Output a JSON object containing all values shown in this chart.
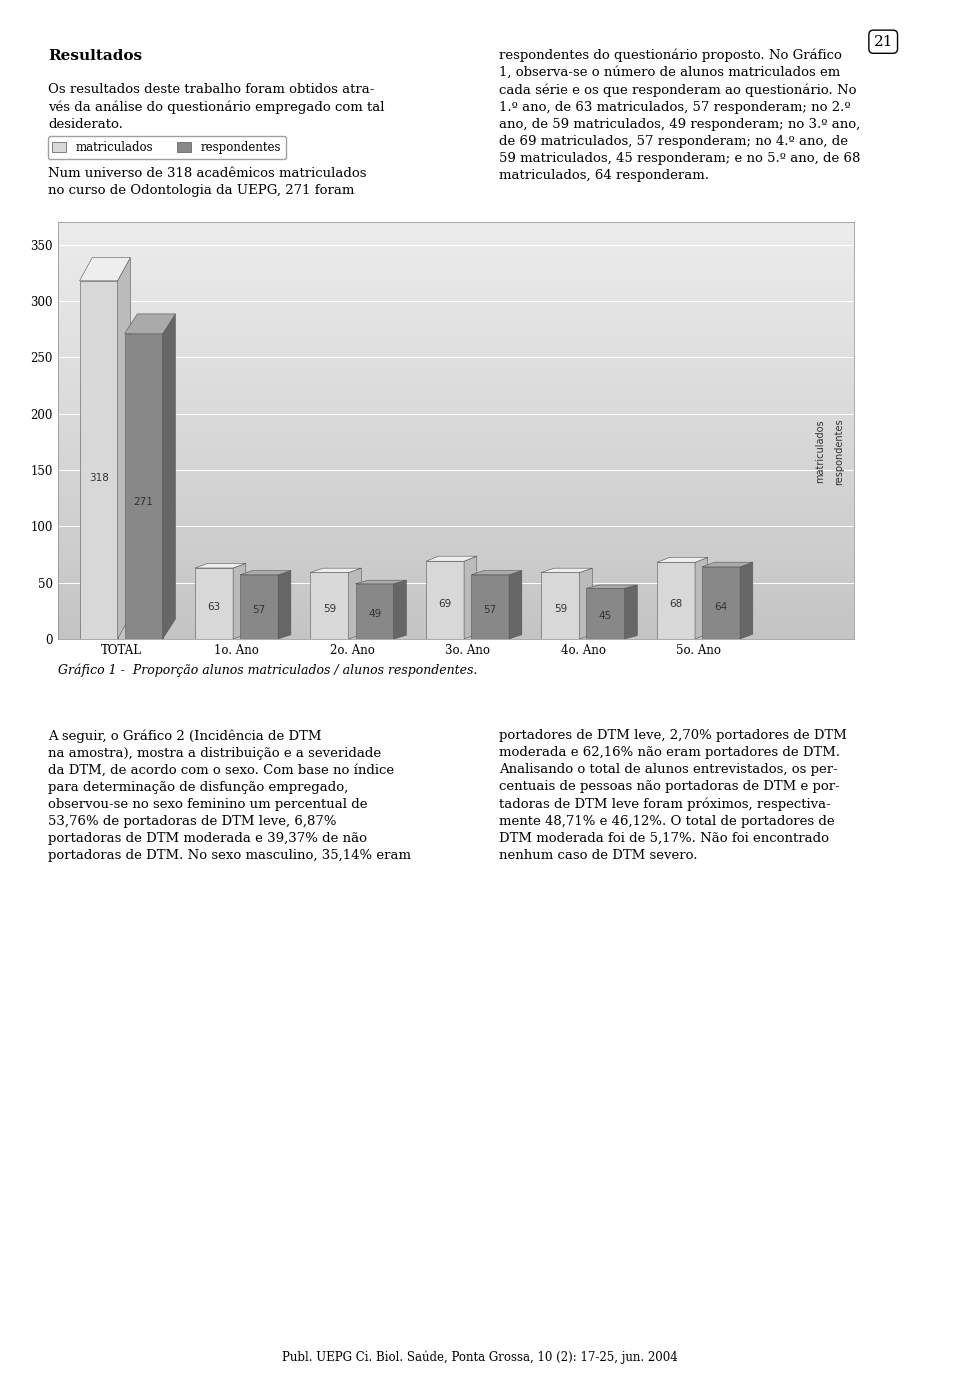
{
  "categories": [
    "TOTAL",
    "1o. Ano",
    "2o. Ano",
    "3o. Ano",
    "4o. Ano",
    "5o. Ano"
  ],
  "matriculados": [
    318,
    63,
    59,
    69,
    59,
    68
  ],
  "respondentes": [
    271,
    57,
    49,
    57,
    45,
    64
  ],
  "bar_color_front_light": "#d8d8d8",
  "bar_color_front_dark": "#888888",
  "bar_color_top_light": "#eeeeee",
  "bar_color_top_dark": "#aaaaaa",
  "bar_color_side_light": "#bbbbbb",
  "bar_color_side_dark": "#666666",
  "legend_label_1": "matriculados",
  "legend_label_2": "respondentes",
  "ylabel_values": [
    0,
    50,
    100,
    150,
    200,
    250,
    300,
    350
  ],
  "ylim": [
    0,
    370
  ],
  "figure_width": 9.6,
  "figure_height": 13.89,
  "page_number": "21",
  "title_left": "Resultados",
  "body_left_1": "Os resultados deste trabalho foram obtidos atra-\nvés da análise do questionário empregado com tal\ndesiderato.",
  "body_left_2": "Num universo de 318 acadêmicos matriculados\nno curso de Odontologia da UEPG, 271 foram",
  "body_right_1": "respondentes do questionário proposto. No Gráfico\n1, observa-se o número de alunos matriculados em\ncada série e os que responderam ao questionário. No\n1.º ano, de 63 matriculados, 57 responderam; no 2.º\nano, de 59 matriculados, 49 responderam; no 3.º ano,\nde 69 matriculados, 57 responderam; no 4.º ano, de\n59 matriculados, 45 responderam; e no 5.º ano, de 68\nmatriculados, 64 responderam.",
  "body_left_3": "A seguir, o Gráfico 2 (Incidência de DTM\nna amostra), mostra a distribuição e a severidade\nda DTM, de acordo com o sexo. Com base no índice\npara determinação de disfunção empregado,\nobservou-se no sexo feminino um percentual de\n53,76% de portadoras de DTM leve, 6,87%\nportadoras de DTM moderada e 39,37% de não\nportadoras de DTM. No sexo masculino, 35,14% eram",
  "body_right_3": "portadores de DTM leve, 2,70% portadores de DTM\nmoderada e 62,16% não eram portadores de DTM.\nAnalisando o total de alunos entrevistados, os per-\ncentuais de pessoas não portadoras de DTM e por-\ntadoras de DTM leve foram próximos, respectiva-\nmente 48,71% e 46,12%. O total de portadores de\nDTM moderada foi de 5,17%. Não foi encontrado\nnenhum caso de DTM severo.",
  "caption": "Gráfico 1 -  Proporção alunos matriculados / alunos respondentes.",
  "footer": "Publ. UEPG Ci. Biol. Saúde, Ponta Grossa, 10 (2): 17-25, jun. 2004"
}
